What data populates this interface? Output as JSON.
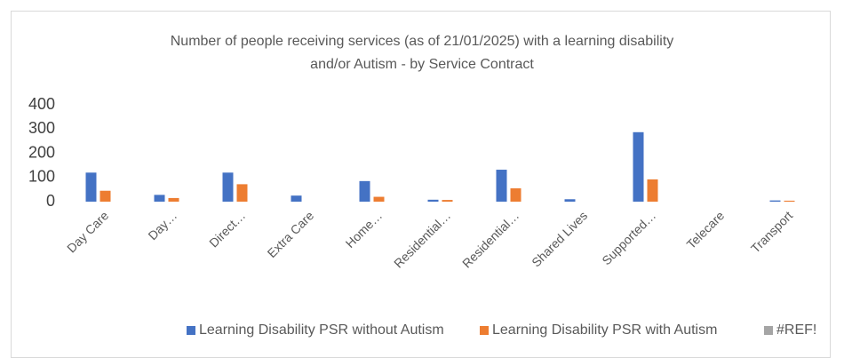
{
  "chart_data": {
    "type": "bar",
    "title": [
      "Number of people receiving services (as of 21/01/2025) with a learning disability",
      "and/or Autism - by Service Contract"
    ],
    "categories": [
      "Day Care",
      "Day…",
      "Direct…",
      "Extra Care",
      "Home…",
      "Residential…",
      "Residential…",
      "Shared Lives",
      "Supported…",
      "Telecare",
      "Transport"
    ],
    "series": [
      {
        "name": "Learning Disability PSR without Autism",
        "color": "#4472c4",
        "values": [
          120,
          28,
          120,
          25,
          85,
          8,
          132,
          10,
          287,
          0,
          5
        ]
      },
      {
        "name": "Learning Disability PSR with Autism",
        "color": "#ed7d31",
        "values": [
          45,
          15,
          72,
          0,
          20,
          7,
          55,
          0,
          92,
          0,
          4
        ]
      },
      {
        "name": "#REF!",
        "color": "#a5a5a5",
        "values": [
          null,
          null,
          null,
          null,
          null,
          null,
          null,
          null,
          null,
          null,
          null
        ]
      }
    ],
    "ylim": [
      0,
      400
    ],
    "yticks": [
      0,
      100,
      200,
      300,
      400
    ],
    "grid": false,
    "legend": "bottom"
  }
}
